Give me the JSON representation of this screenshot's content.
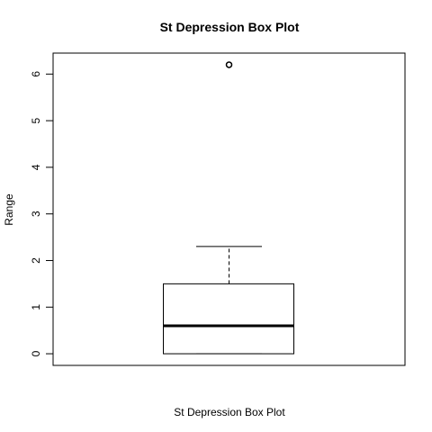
{
  "chart_data": {
    "type": "box",
    "title": "St Depression Box Plot",
    "xlabel": "St Depression Box Plot",
    "ylabel": "Range",
    "ylim": [
      -0.25,
      6.45
    ],
    "yticks": [
      0,
      1,
      2,
      3,
      4,
      5,
      6
    ],
    "box": {
      "min": 0,
      "q1": 0,
      "median": 0.6,
      "q3": 1.5,
      "max": 2.3
    },
    "outliers": [
      6.2
    ],
    "grid": false
  }
}
